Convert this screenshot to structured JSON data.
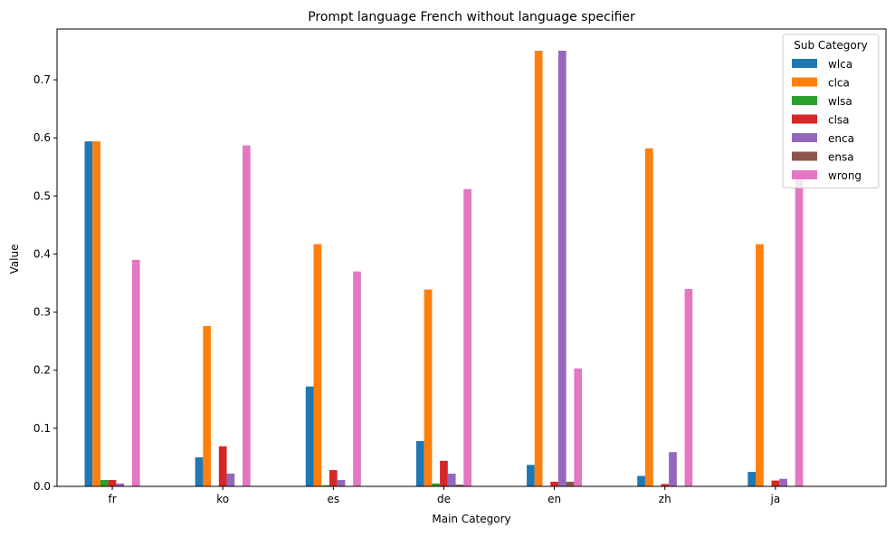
{
  "chart_data": {
    "type": "bar",
    "title": "Prompt language French without language specifier",
    "xlabel": "Main Category",
    "ylabel": "Value",
    "categories": [
      "fr",
      "ko",
      "es",
      "de",
      "en",
      "zh",
      "ja"
    ],
    "ylim": [
      0,
      0.7875
    ],
    "yticks": [
      0.0,
      0.1,
      0.2,
      0.3,
      0.4,
      0.5,
      0.6,
      0.7
    ],
    "ytick_labels": [
      "0.0",
      "0.1",
      "0.2",
      "0.3",
      "0.4",
      "0.5",
      "0.6",
      "0.7"
    ],
    "grid": false,
    "legend": {
      "title": "Sub Category",
      "placement": "top-right"
    },
    "series": [
      {
        "name": "wlca",
        "color": "#1f77b4",
        "values": [
          0.594,
          0.05,
          0.172,
          0.078,
          0.037,
          0.018,
          0.025
        ]
      },
      {
        "name": "clca",
        "color": "#ff7f0e",
        "values": [
          0.594,
          0.276,
          0.417,
          0.339,
          0.75,
          0.582,
          0.417
        ]
      },
      {
        "name": "wlsa",
        "color": "#2ca02c",
        "values": [
          0.011,
          0.0,
          0.002,
          0.005,
          0.0,
          0.0,
          0.0
        ]
      },
      {
        "name": "clsa",
        "color": "#d62728",
        "values": [
          0.011,
          0.069,
          0.028,
          0.044,
          0.008,
          0.004,
          0.01
        ]
      },
      {
        "name": "enca",
        "color": "#9467bd",
        "values": [
          0.005,
          0.022,
          0.011,
          0.022,
          0.75,
          0.059,
          0.013
        ]
      },
      {
        "name": "ensa",
        "color": "#8c564b",
        "values": [
          0.0,
          0.0,
          0.0,
          0.003,
          0.008,
          0.0,
          0.0
        ]
      },
      {
        "name": "wrong",
        "color": "#e377c2",
        "values": [
          0.39,
          0.587,
          0.37,
          0.512,
          0.203,
          0.34,
          0.54
        ]
      }
    ]
  }
}
